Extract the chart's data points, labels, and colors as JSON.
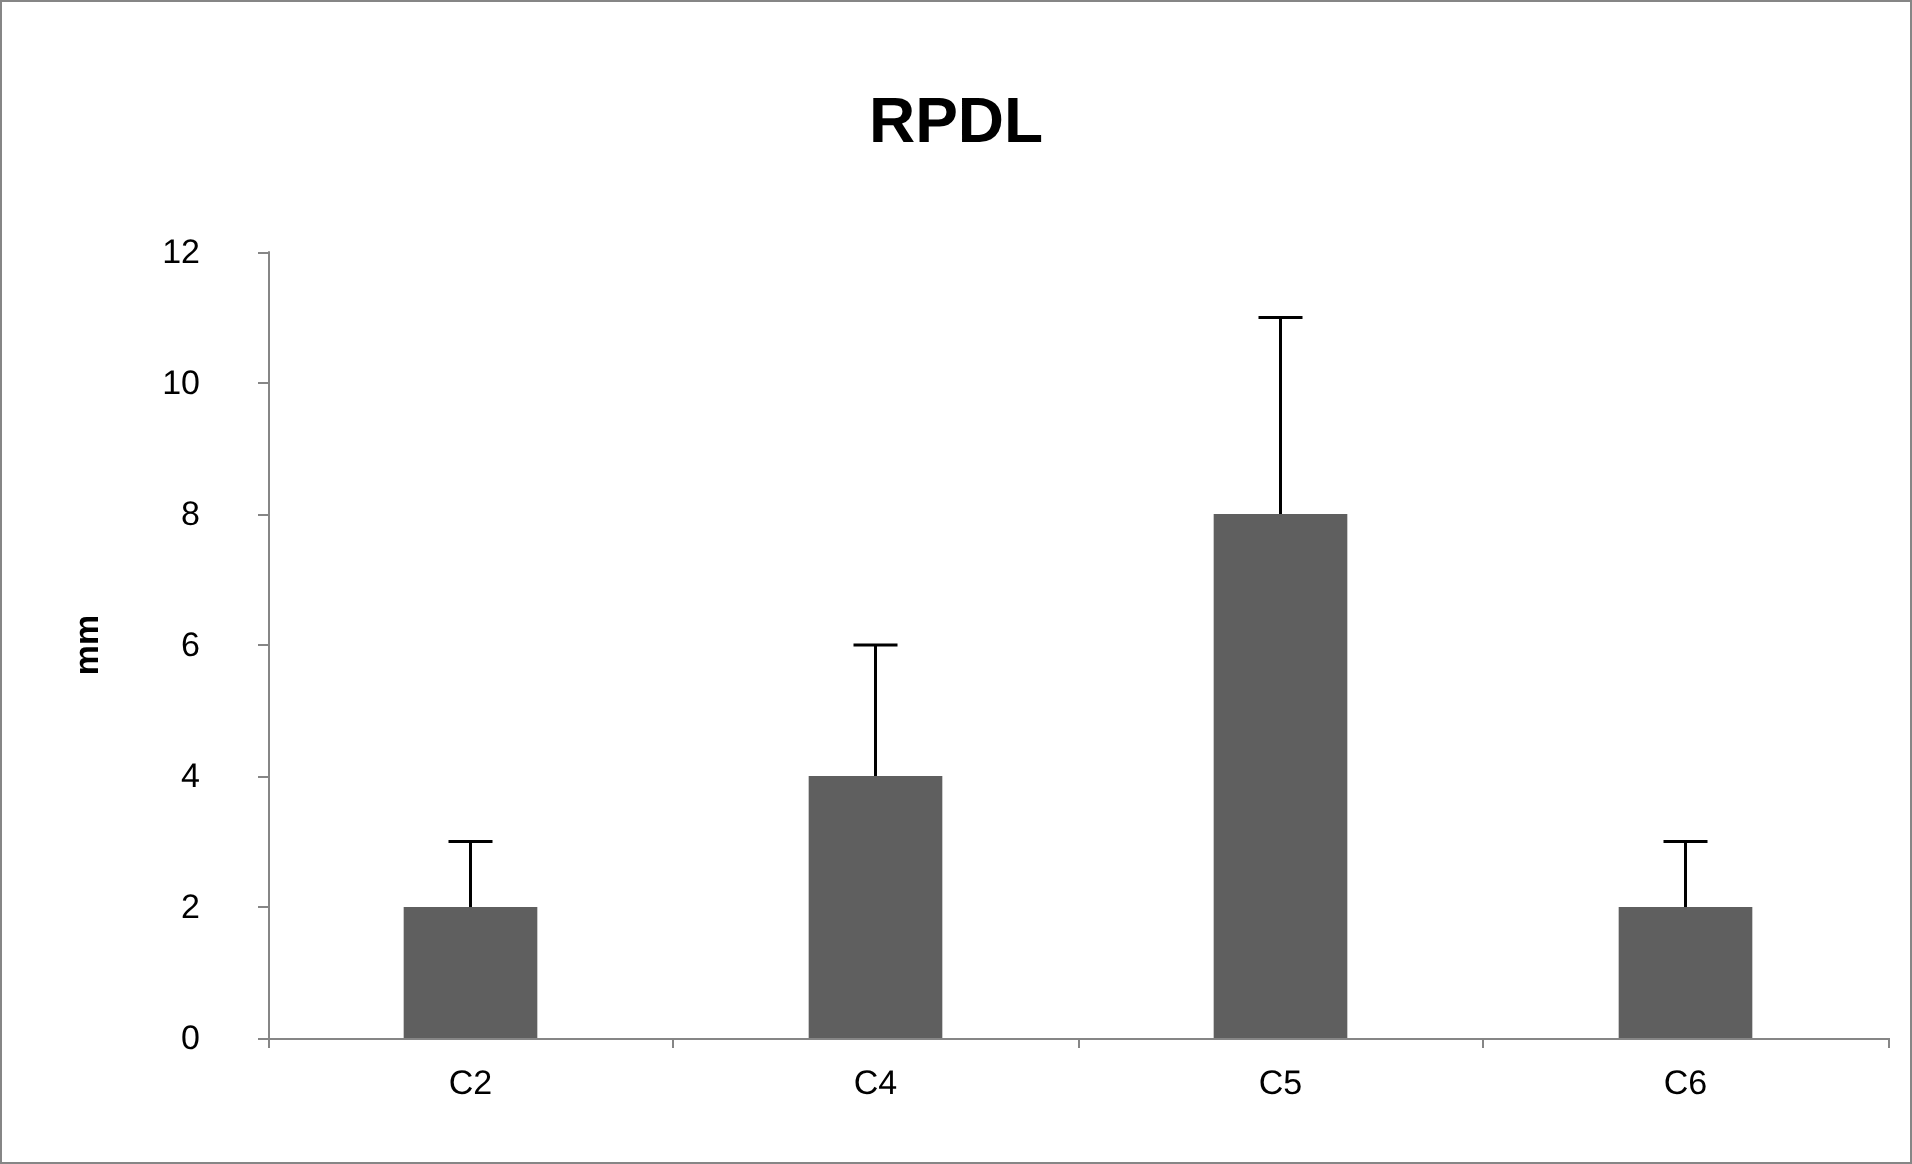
{
  "chart_data": {
    "type": "bar",
    "title": "RPDL",
    "ylabel": "mm",
    "categories": [
      "C2",
      "C4",
      "C5",
      "C6"
    ],
    "values": [
      2,
      4,
      8,
      2
    ],
    "errors": [
      [
        2,
        3
      ],
      [
        4,
        6
      ],
      [
        8,
        11
      ],
      [
        2,
        3
      ]
    ],
    "color": "#5f5f5f",
    "ylim": [
      0,
      12
    ],
    "yticks": [
      0,
      2,
      4,
      6,
      8,
      10,
      12
    ],
    "grid": false
  }
}
